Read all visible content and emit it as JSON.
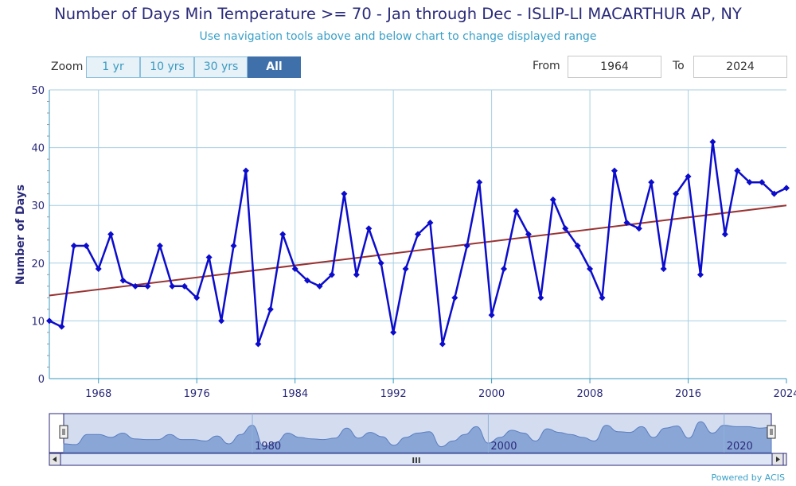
{
  "chart_data": {
    "type": "line",
    "title": "Number of Days Min Temperature >= 70 - Jan through Dec - ISLIP-LI MACARTHUR AP, NY",
    "subtitle": "Use navigation tools above and below chart to change displayed range",
    "ylabel": "Number of Days",
    "xlabel": "",
    "ylim": [
      0,
      50
    ],
    "xlim": [
      1964,
      2024
    ],
    "y_ticks": [
      "0",
      "10",
      "20",
      "30",
      "40",
      "50"
    ],
    "x_ticks": [
      "1968",
      "1976",
      "1984",
      "1992",
      "2000",
      "2008",
      "2016",
      "2024"
    ],
    "grid": true,
    "series": [
      {
        "x": [
          1964,
          1965,
          1966,
          1967,
          1968,
          1969,
          1970,
          1971,
          1972,
          1973,
          1974,
          1975,
          1976,
          1977,
          1978,
          1979,
          1980,
          1981,
          1982,
          1983,
          1984,
          1985,
          1986,
          1987,
          1988,
          1989,
          1990,
          1991,
          1992,
          1993,
          1994,
          1995,
          1996,
          1997,
          1998,
          1999,
          2000,
          2001,
          2002,
          2003,
          2004,
          2005,
          2006,
          2007,
          2008,
          2009,
          2010,
          2011,
          2012,
          2013,
          2014,
          2015,
          2016,
          2017,
          2018,
          2019,
          2020,
          2021,
          2022,
          2023,
          2024
        ],
        "values": [
          10,
          9,
          23,
          23,
          19,
          25,
          17,
          16,
          16,
          23,
          16,
          16,
          14,
          21,
          10,
          23,
          36,
          6,
          12,
          25,
          19,
          17,
          16,
          18,
          32,
          18,
          26,
          20,
          8,
          19,
          25,
          27,
          6,
          14,
          23,
          34,
          11,
          19,
          29,
          25,
          14,
          31,
          26,
          23,
          19,
          14,
          36,
          27,
          26,
          34,
          19,
          32,
          35,
          18,
          41,
          25,
          36,
          34,
          34,
          32,
          33
        ],
        "color": "#0c0ccc"
      }
    ],
    "trend": {
      "start": [
        1964,
        14.4
      ],
      "end": [
        2024,
        30.0
      ],
      "color": "#993333"
    }
  },
  "controls": {
    "zoom_label": "Zoom",
    "zoom_buttons": [
      "1 yr",
      "10 yrs",
      "30 yrs",
      "All"
    ],
    "active_zoom": "All",
    "from_label": "From",
    "from_value": "1964",
    "to_label": "To",
    "to_value": "2024"
  },
  "navigator": {
    "ticks": [
      "1980",
      "2000",
      "2020"
    ],
    "scroll_grip": "III"
  },
  "credit": "Powered by ACIS"
}
